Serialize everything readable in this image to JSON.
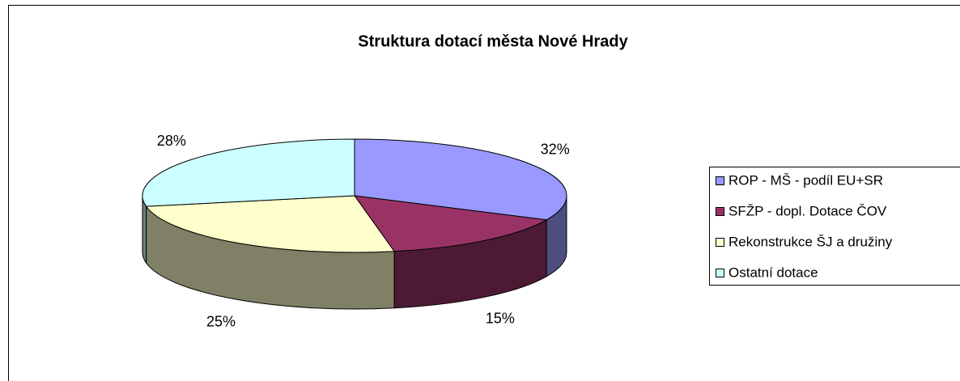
{
  "chart_data": {
    "type": "pie",
    "title": "Struktura dotací města Nové Hrady",
    "categories": [
      "ROP - MŠ - podíl EU+SR",
      "SFŽP - dopl. Dotace ČOV",
      "Rekonstrukce ŠJ a družiny",
      "Ostatní dotace"
    ],
    "values": [
      32,
      15,
      25,
      28
    ],
    "value_labels": [
      "32%",
      "15%",
      "25%",
      "28%"
    ],
    "colors": [
      "#9999ff",
      "#993366",
      "#ffffcc",
      "#ccffff"
    ],
    "legend": "right"
  }
}
